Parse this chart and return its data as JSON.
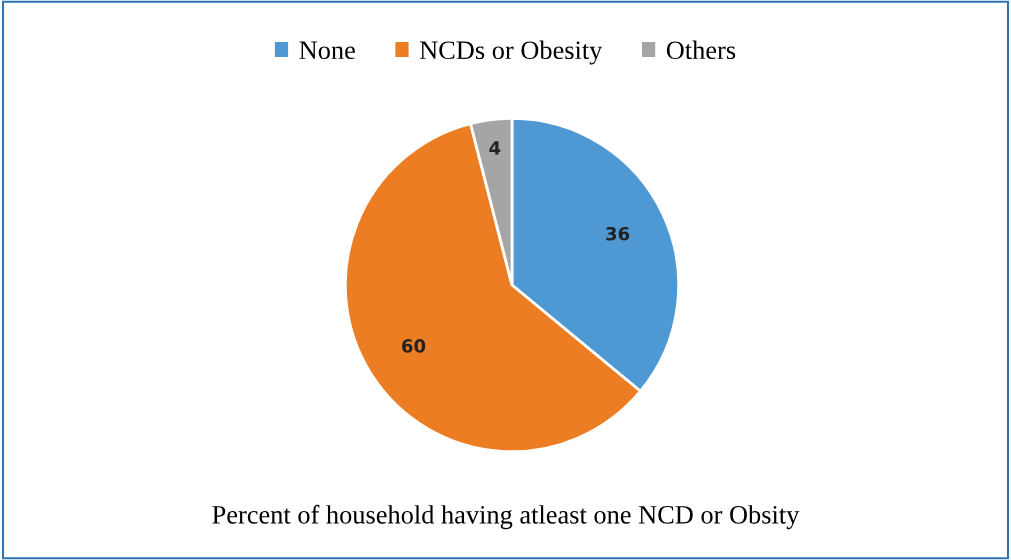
{
  "chart_data": {
    "type": "pie",
    "title": "Percent of household having atleast one NCD or Obsity",
    "categories": [
      "None",
      "NCDs or Obesity",
      "Others"
    ],
    "values": [
      36,
      60,
      4
    ],
    "colors": [
      "#4e98d3",
      "#ed7d22",
      "#a5a5a5"
    ],
    "data_labels": true,
    "legend": "top"
  }
}
